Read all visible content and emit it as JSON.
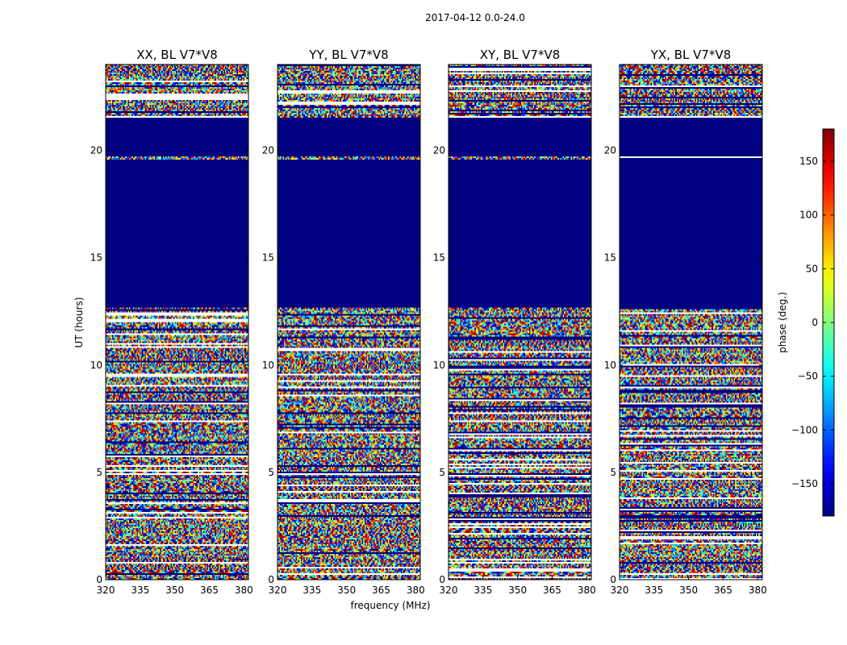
{
  "figure": {
    "suptitle": "2017-04-12 0.0-24.0",
    "xlabel": "frequency (MHz)",
    "ylabel": "UT (hours)",
    "colorbar_label": "phase (deg.)"
  },
  "chart_data": {
    "type": "heatmap",
    "colormap": "jet",
    "x_range": [
      320,
      382
    ],
    "y_range": [
      0,
      24
    ],
    "x_ticks": [
      320,
      335,
      350,
      365,
      380
    ],
    "y_ticks": [
      0,
      5,
      10,
      15,
      20
    ],
    "clim": [
      -180,
      180
    ],
    "colorbar_ticks": [
      -150,
      -100,
      -50,
      0,
      50,
      100,
      150
    ],
    "colorbar_tick_labels": [
      "−150",
      "−100",
      "−50",
      "0",
      "50",
      "100",
      "150"
    ],
    "masked_value": -180,
    "masked_ut_ranges": [
      [
        12.7,
        19.6
      ],
      [
        19.7,
        21.5
      ]
    ],
    "description_of_cells": "phase vs time and frequency; noisy fringes outside masked ranges",
    "panels": [
      {
        "title": "XX, BL V7*V8",
        "pol": "XX"
      },
      {
        "title": "YY, BL V7*V8",
        "pol": "YY"
      },
      {
        "title": "XY, BL V7*V8",
        "pol": "XY"
      },
      {
        "title": "YX, BL V7*V8",
        "pol": "YX"
      }
    ]
  },
  "colors": {
    "background": "#ffffff",
    "masked": "#000080",
    "axes": "#000000"
  }
}
